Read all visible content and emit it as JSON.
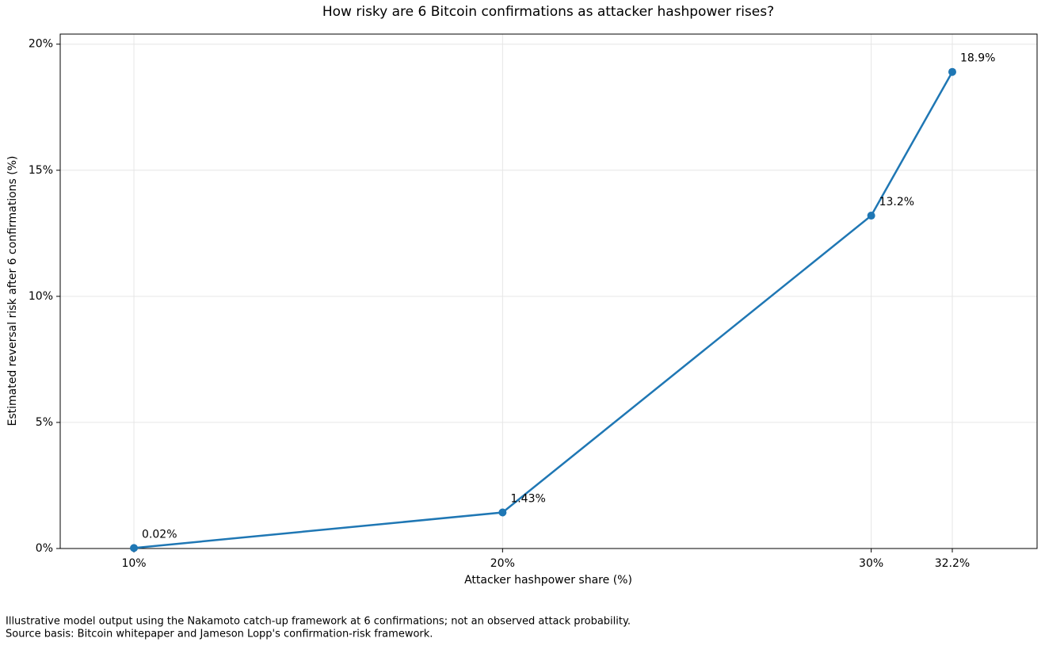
{
  "chart_data": {
    "type": "line",
    "title": "How risky are 6 Bitcoin confirmations as attacker hashpower rises?",
    "x_label": "Attacker hashpower share (%)",
    "y_label": "Estimated reversal risk after 6 confirmations (%)",
    "footnotes": [
      "Illustrative model output using the Nakamoto catch-up framework at 6 confirmations; not an observed attack probability.",
      "Source basis: Bitcoin whitepaper and Jameson Lopp's confirmation-risk framework."
    ],
    "x": [
      10,
      20,
      30,
      32.2
    ],
    "series": [
      {
        "name": "Reversal risk",
        "color": "#1f77b4",
        "values": [
          0.02,
          1.43,
          13.2,
          18.9
        ],
        "value_labels": [
          "0.02%",
          "1.43%",
          "13.2%",
          "18.9%"
        ]
      }
    ],
    "xlim": [
      8,
      34.5
    ],
    "ylim": [
      0,
      20.4
    ],
    "xticks": [
      {
        "value": 10,
        "label": "10%"
      },
      {
        "value": 20,
        "label": "20%"
      },
      {
        "value": 30,
        "label": "30%"
      },
      {
        "value": 32.2,
        "label": "32.2%"
      }
    ],
    "yticks": [
      {
        "value": 0,
        "label": "0%"
      },
      {
        "value": 5,
        "label": "5%"
      },
      {
        "value": 10,
        "label": "10%"
      },
      {
        "value": 15,
        "label": "15%"
      },
      {
        "value": 20,
        "label": "20%"
      }
    ],
    "grid": true
  }
}
